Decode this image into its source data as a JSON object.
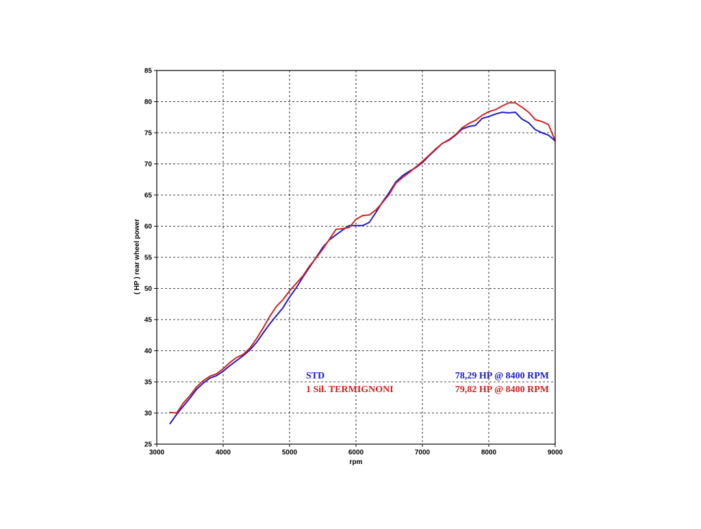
{
  "chart_data": {
    "type": "line",
    "title": "",
    "xlabel": "rpm",
    "ylabel": "( HP )   rear  wheel  power",
    "xlim": [
      3000,
      9000
    ],
    "ylim": [
      25,
      85
    ],
    "xticks": [
      3000,
      4000,
      5000,
      6000,
      7000,
      8000,
      9000
    ],
    "yticks": [
      25,
      30,
      35,
      40,
      45,
      50,
      55,
      60,
      65,
      70,
      75,
      80,
      85
    ],
    "grid": true,
    "legend_position": "lower-right",
    "series": [
      {
        "name": "STD",
        "summary": "78,29 HP @ 8400 RPM",
        "color": "#1a1acc",
        "x": [
          3200,
          3300,
          3400,
          3500,
          3600,
          3700,
          3800,
          3900,
          4000,
          4100,
          4200,
          4300,
          4400,
          4500,
          4600,
          4700,
          4800,
          4900,
          5000,
          5100,
          5200,
          5300,
          5400,
          5500,
          5600,
          5700,
          5800,
          5900,
          6000,
          6100,
          6200,
          6300,
          6400,
          6500,
          6600,
          6700,
          6800,
          6900,
          7000,
          7100,
          7200,
          7300,
          7400,
          7500,
          7600,
          7700,
          7800,
          7900,
          8000,
          8100,
          8200,
          8300,
          8400,
          8500,
          8600,
          8700,
          8800,
          8900,
          9000
        ],
        "y": [
          28.3,
          29.8,
          31.1,
          32.4,
          33.8,
          34.8,
          35.6,
          36.0,
          36.7,
          37.6,
          38.4,
          39.2,
          40.1,
          41.3,
          42.8,
          44.3,
          45.6,
          46.9,
          48.6,
          50.1,
          51.8,
          53.4,
          55.0,
          56.6,
          57.8,
          58.6,
          59.4,
          60.1,
          60.1,
          60.1,
          60.6,
          62.2,
          63.9,
          65.4,
          67.1,
          68.1,
          68.8,
          69.4,
          70.2,
          71.3,
          72.3,
          73.3,
          73.8,
          74.6,
          75.6,
          76.0,
          76.2,
          77.3,
          77.6,
          78.0,
          78.3,
          78.2,
          78.3,
          77.2,
          76.6,
          75.5,
          75.0,
          74.6,
          73.7
        ]
      },
      {
        "name": "1 Sil. TERMIGNONI",
        "summary": "79,82 HP @ 8400 RPM",
        "color": "#d42020",
        "x": [
          3200,
          3300,
          3400,
          3500,
          3600,
          3700,
          3800,
          3900,
          4000,
          4100,
          4200,
          4300,
          4400,
          4500,
          4600,
          4700,
          4800,
          4900,
          5000,
          5100,
          5200,
          5300,
          5400,
          5500,
          5600,
          5700,
          5800,
          5900,
          6000,
          6100,
          6200,
          6300,
          6400,
          6500,
          6600,
          6700,
          6800,
          6900,
          7000,
          7100,
          7200,
          7300,
          7400,
          7500,
          7600,
          7700,
          7800,
          7900,
          8000,
          8100,
          8200,
          8300,
          8400,
          8500,
          8600,
          8700,
          8800,
          8900,
          9000
        ],
        "y": [
          30.1,
          30.0,
          31.6,
          32.8,
          34.2,
          35.2,
          35.9,
          36.3,
          37.1,
          38.1,
          38.9,
          39.4,
          40.4,
          41.9,
          43.6,
          45.5,
          47.1,
          48.2,
          49.6,
          50.8,
          52.0,
          53.6,
          54.9,
          56.3,
          57.9,
          59.5,
          59.6,
          59.8,
          61.1,
          61.7,
          61.8,
          62.6,
          63.8,
          65.1,
          66.9,
          67.8,
          68.6,
          69.5,
          70.4,
          71.4,
          72.4,
          73.3,
          73.9,
          74.7,
          75.8,
          76.5,
          77.0,
          77.8,
          78.4,
          78.7,
          79.3,
          79.8,
          79.8,
          79.1,
          78.3,
          77.1,
          76.8,
          76.3,
          73.7
        ]
      }
    ]
  }
}
